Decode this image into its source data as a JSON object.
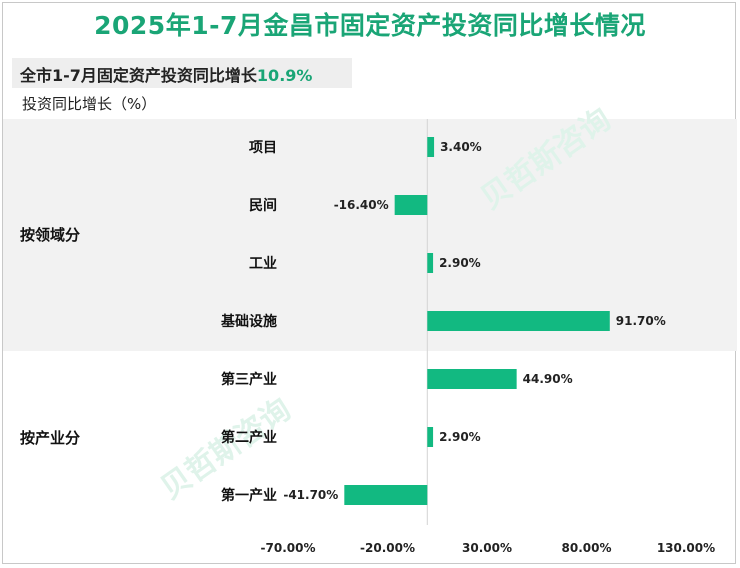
{
  "chart_data": {
    "type": "bar",
    "orientation": "horizontal",
    "title": "2025年1-7月金昌市固定资产投资同比增长情况",
    "summary_label": "全市1-7月固定资产投资同比增长",
    "summary_value": "10.9%",
    "ylabel": "投资同比增长（%）",
    "groups": [
      {
        "name": "按领域分",
        "categories": [
          "项目",
          "民间",
          "工业",
          "基础设施"
        ]
      },
      {
        "name": "按产业分",
        "categories": [
          "第三产业",
          "第二产业",
          "第一产业"
        ]
      }
    ],
    "categories": [
      "项目",
      "民间",
      "工业",
      "基础设施",
      "第三产业",
      "第二产业",
      "第一产业"
    ],
    "values": [
      3.4,
      -16.4,
      2.9,
      91.7,
      44.9,
      2.9,
      -41.7
    ],
    "value_labels": [
      "3.40%",
      "-16.40%",
      "2.90%",
      "91.70%",
      "44.90%",
      "2.90%",
      "-41.70%"
    ],
    "xlim": [
      -70,
      130
    ],
    "xticks": [
      -70,
      -20,
      30,
      80,
      130
    ],
    "xtick_labels": [
      "-70.00%",
      "-20.00%",
      "30.00%",
      "80.00%",
      "130.00%"
    ],
    "colors": {
      "bar": "#12b981",
      "title": "#1aa576",
      "group_band": "#f2f2f2",
      "axis": "#d4d4d4"
    }
  }
}
